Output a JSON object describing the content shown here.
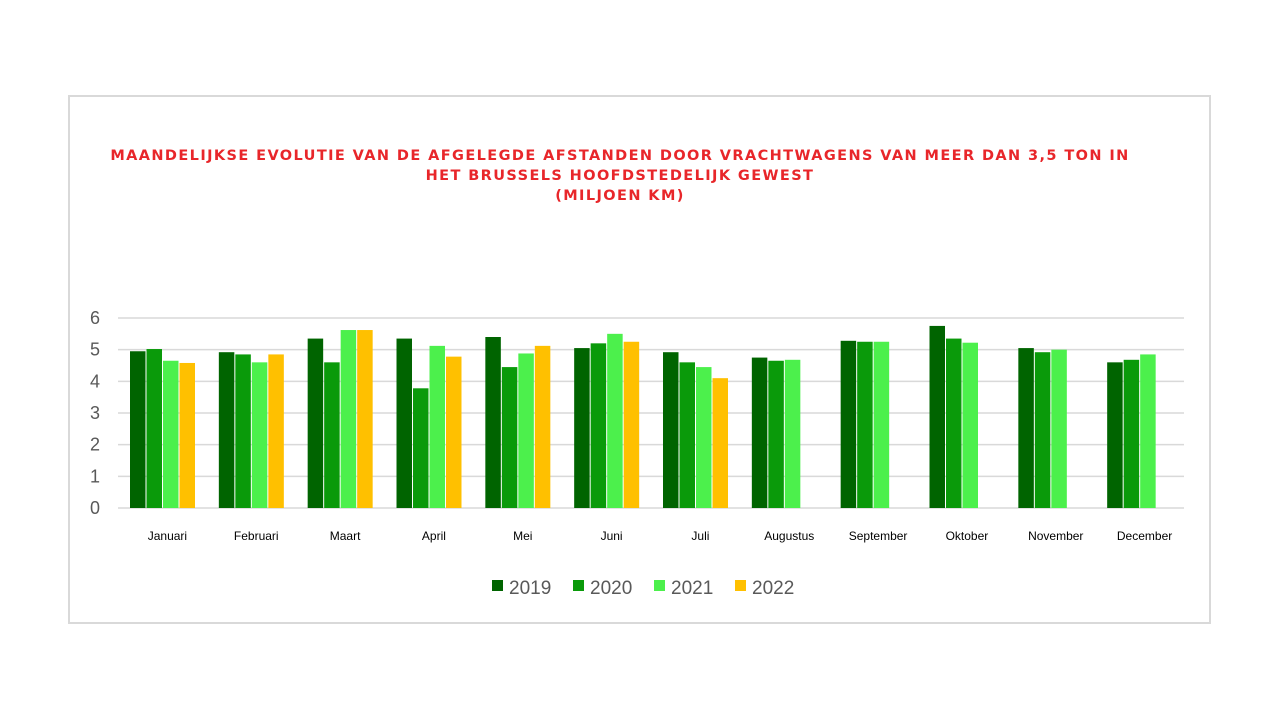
{
  "chart_data": {
    "type": "bar",
    "title_lines": [
      "MAANDELIJKSE EVOLUTIE VAN DE AFGELEGDE AFSTANDEN DOOR VRACHTWAGENS VAN MEER DAN 3,5 TON IN",
      "HET BRUSSELS HOOFDSTEDELIJK GEWEST",
      "(MILJOEN  KM)"
    ],
    "categories": [
      "Januari",
      "Februari",
      "Maart",
      "April",
      "Mei",
      "Juni",
      "Juli",
      "Augustus",
      "September",
      "Oktober",
      "November",
      "December"
    ],
    "series": [
      {
        "name": "2019",
        "color": "#006400",
        "values": [
          4.95,
          4.92,
          5.35,
          5.35,
          5.4,
          5.05,
          4.92,
          4.75,
          5.28,
          5.75,
          5.05,
          4.6
        ]
      },
      {
        "name": "2020",
        "color": "#0a9a0a",
        "values": [
          5.02,
          4.85,
          4.6,
          3.78,
          4.45,
          5.2,
          4.6,
          4.65,
          5.25,
          5.35,
          4.92,
          4.68
        ]
      },
      {
        "name": "2021",
        "color": "#4cf04c",
        "values": [
          4.65,
          4.6,
          5.62,
          5.12,
          4.88,
          5.5,
          4.45,
          4.68,
          5.25,
          5.22,
          5.0,
          4.85
        ]
      },
      {
        "name": "2022",
        "color": "#ffc000",
        "values": [
          4.58,
          4.85,
          5.62,
          4.78,
          5.12,
          5.25,
          4.1,
          null,
          null,
          null,
          null,
          null
        ]
      }
    ],
    "yticks": [
      "0",
      "1",
      "2",
      "3",
      "4",
      "5",
      "6"
    ],
    "ylim": [
      0,
      6
    ],
    "grid": true,
    "legend_position": "bottom"
  }
}
